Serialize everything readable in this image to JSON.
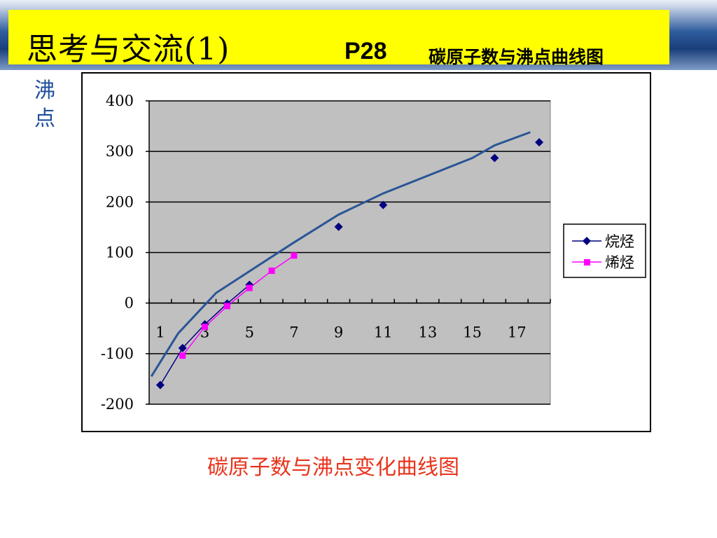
{
  "header": {
    "title": "思考与交流(1)",
    "page": "P28",
    "subtitle": "碳原子数与沸点曲线图"
  },
  "y_axis_label": "沸\n点",
  "caption": "碳原子数与沸点变化曲线图",
  "colors": {
    "title_bg": "#ffff00",
    "plot_bg": "#c0c0c0",
    "alkane": "#000080",
    "alkene": "#ff00ff",
    "trend": "#2a5596",
    "caption": "#e8341c",
    "ylabel": "#1f4e9e"
  },
  "chart_data": {
    "type": "line",
    "xlim": [
      0.5,
      18.5
    ],
    "ylim": [
      -200,
      400
    ],
    "y_ticks": [
      -200,
      -100,
      0,
      100,
      200,
      300,
      400
    ],
    "x_tick_labels": [
      1,
      3,
      5,
      7,
      9,
      11,
      13,
      15,
      17
    ],
    "grid": "horizontal",
    "legend_position": "right",
    "series": [
      {
        "name": "烷烃",
        "marker": "diamond",
        "x": [
          1,
          2,
          3,
          4,
          5,
          9,
          11,
          16,
          18
        ],
        "y": [
          -162,
          -89,
          -42,
          -1,
          36,
          151,
          194,
          287,
          318
        ],
        "connect": [
          true,
          true,
          true,
          true,
          false,
          false,
          false,
          false
        ]
      },
      {
        "name": "烯烃",
        "marker": "square",
        "x": [
          2,
          3,
          4,
          5,
          6,
          7
        ],
        "y": [
          -104,
          -47,
          -6,
          30,
          64,
          94
        ],
        "connect": [
          true,
          true,
          true,
          true,
          true
        ]
      },
      {
        "name": "",
        "marker": "none",
        "x": [
          0.6,
          1.8,
          3.5,
          5,
          7,
          9,
          11,
          13,
          15,
          16,
          17.6
        ],
        "y": [
          -145,
          -60,
          20,
          63,
          120,
          175,
          217,
          252,
          287,
          312,
          338
        ]
      }
    ]
  }
}
